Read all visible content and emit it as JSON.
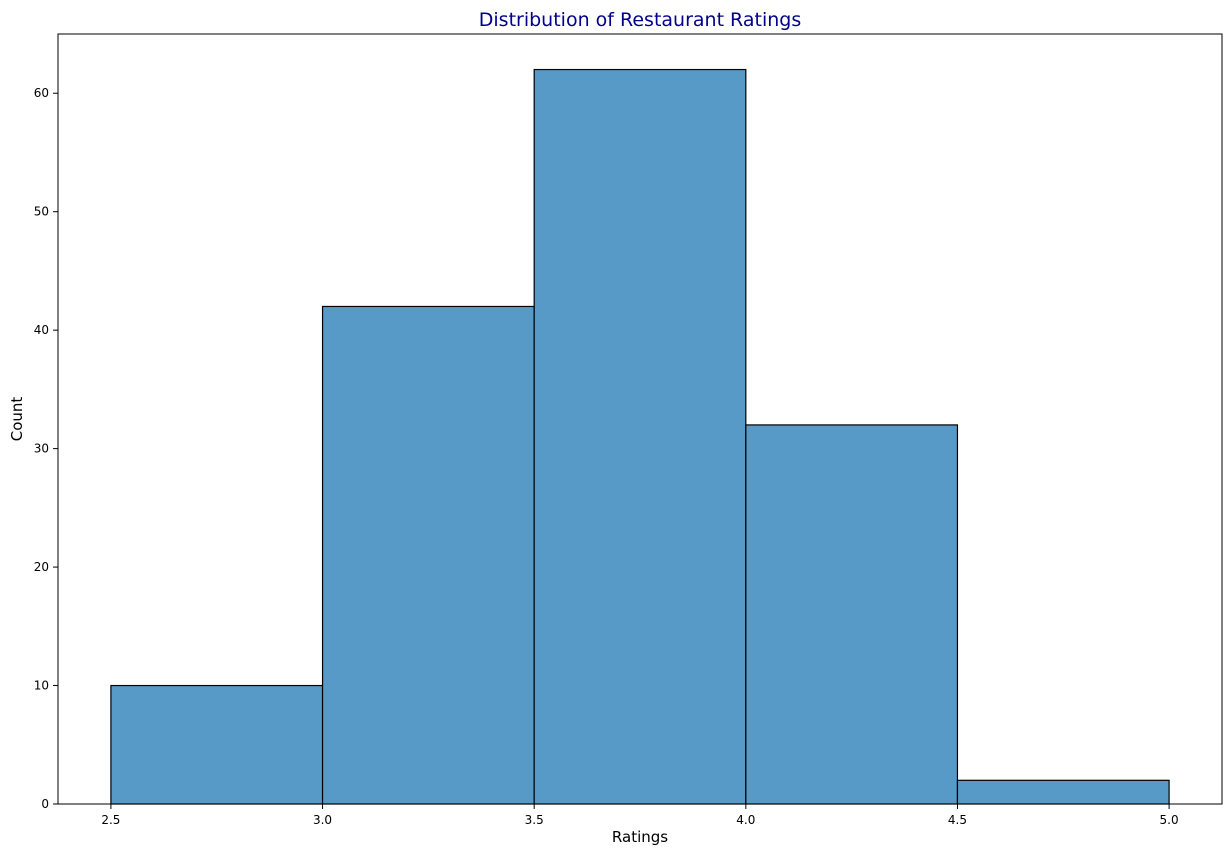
{
  "chart_data": {
    "type": "bar",
    "subtype": "histogram",
    "title": "Distribution of Restaurant Ratings",
    "xlabel": "Ratings",
    "ylabel": "Count",
    "bins": [
      {
        "start": 2.5,
        "end": 3.0,
        "value": 10
      },
      {
        "start": 3.0,
        "end": 3.5,
        "value": 42
      },
      {
        "start": 3.5,
        "end": 4.0,
        "value": 62
      },
      {
        "start": 4.0,
        "end": 4.5,
        "value": 32
      },
      {
        "start": 4.5,
        "end": 5.0,
        "value": 2
      }
    ],
    "xlim": [
      2.375,
      5.125
    ],
    "ylim": [
      0,
      65
    ],
    "xticks": [
      "2.5",
      "3.0",
      "3.5",
      "4.0",
      "4.5",
      "5.0"
    ],
    "yticks": [
      "0",
      "10",
      "20",
      "30",
      "40",
      "50",
      "60"
    ],
    "grid": false,
    "colors": {
      "bar_fill": "#5799c7",
      "bar_edge": "#000000",
      "title": "#00008b"
    }
  }
}
